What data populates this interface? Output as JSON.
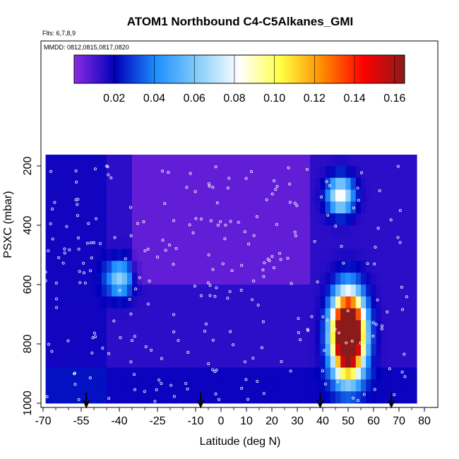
{
  "chart_data": {
    "type": "heatmap",
    "title": "ATOM1 Northbound C4-C5Alkanes_GMI",
    "annotations": [
      "Flts: 6,7,8,9",
      "MMDD: 0812,0815,0817,0820"
    ],
    "xlabel": "Latitude (deg N)",
    "ylabel": "PSXC (mbar)",
    "xlim": [
      -70,
      80
    ],
    "ylim": [
      1000,
      0
    ],
    "x_ticks": [
      -70,
      -55,
      -40,
      -25,
      -10,
      0,
      10,
      20,
      30,
      40,
      50,
      60,
      70,
      80
    ],
    "x_tick_labels": [
      "-70",
      "-55",
      "-40",
      "-25",
      "-10",
      "0",
      "10",
      "20",
      "30",
      "40",
      "50",
      "60",
      "70",
      "80"
    ],
    "y_ticks": [
      200,
      400,
      600,
      800,
      1000
    ],
    "y_tick_labels": [
      "200",
      "400",
      "600",
      "800",
      "1000"
    ],
    "colorbar": {
      "range": [
        0.0,
        0.165
      ],
      "ticks": [
        0.02,
        0.04,
        0.06,
        0.08,
        0.1,
        0.12,
        0.14,
        0.16
      ],
      "tick_labels": [
        "0.02",
        "0.04",
        "0.06",
        "0.08",
        "0.10",
        "0.12",
        "0.14",
        "0.16"
      ],
      "colors": [
        "#8a2be2",
        "#0000bb",
        "#1e90ff",
        "#87cefa",
        "#ffffff",
        "#ffff44",
        "#ff8c00",
        "#ff0000",
        "#8b1a1a"
      ]
    },
    "pressure_levels": [
      170,
      200,
      240,
      280,
      320,
      360,
      400,
      440,
      480,
      520,
      560,
      600,
      640,
      680,
      720,
      760,
      800,
      840,
      880,
      920,
      960,
      1000
    ],
    "latitude_range": [
      -69,
      77
    ],
    "hotspots": [
      {
        "lat": 50,
        "psxc": 810,
        "value": 0.16
      },
      {
        "lat": 50,
        "psxc": 720,
        "value": 0.13
      },
      {
        "lat": 47,
        "psxc": 300,
        "value": 0.07
      },
      {
        "lat": -40,
        "psxc": 580,
        "value": 0.05
      }
    ],
    "flight_markers_lat": [
      -53,
      -8,
      39,
      67
    ]
  }
}
